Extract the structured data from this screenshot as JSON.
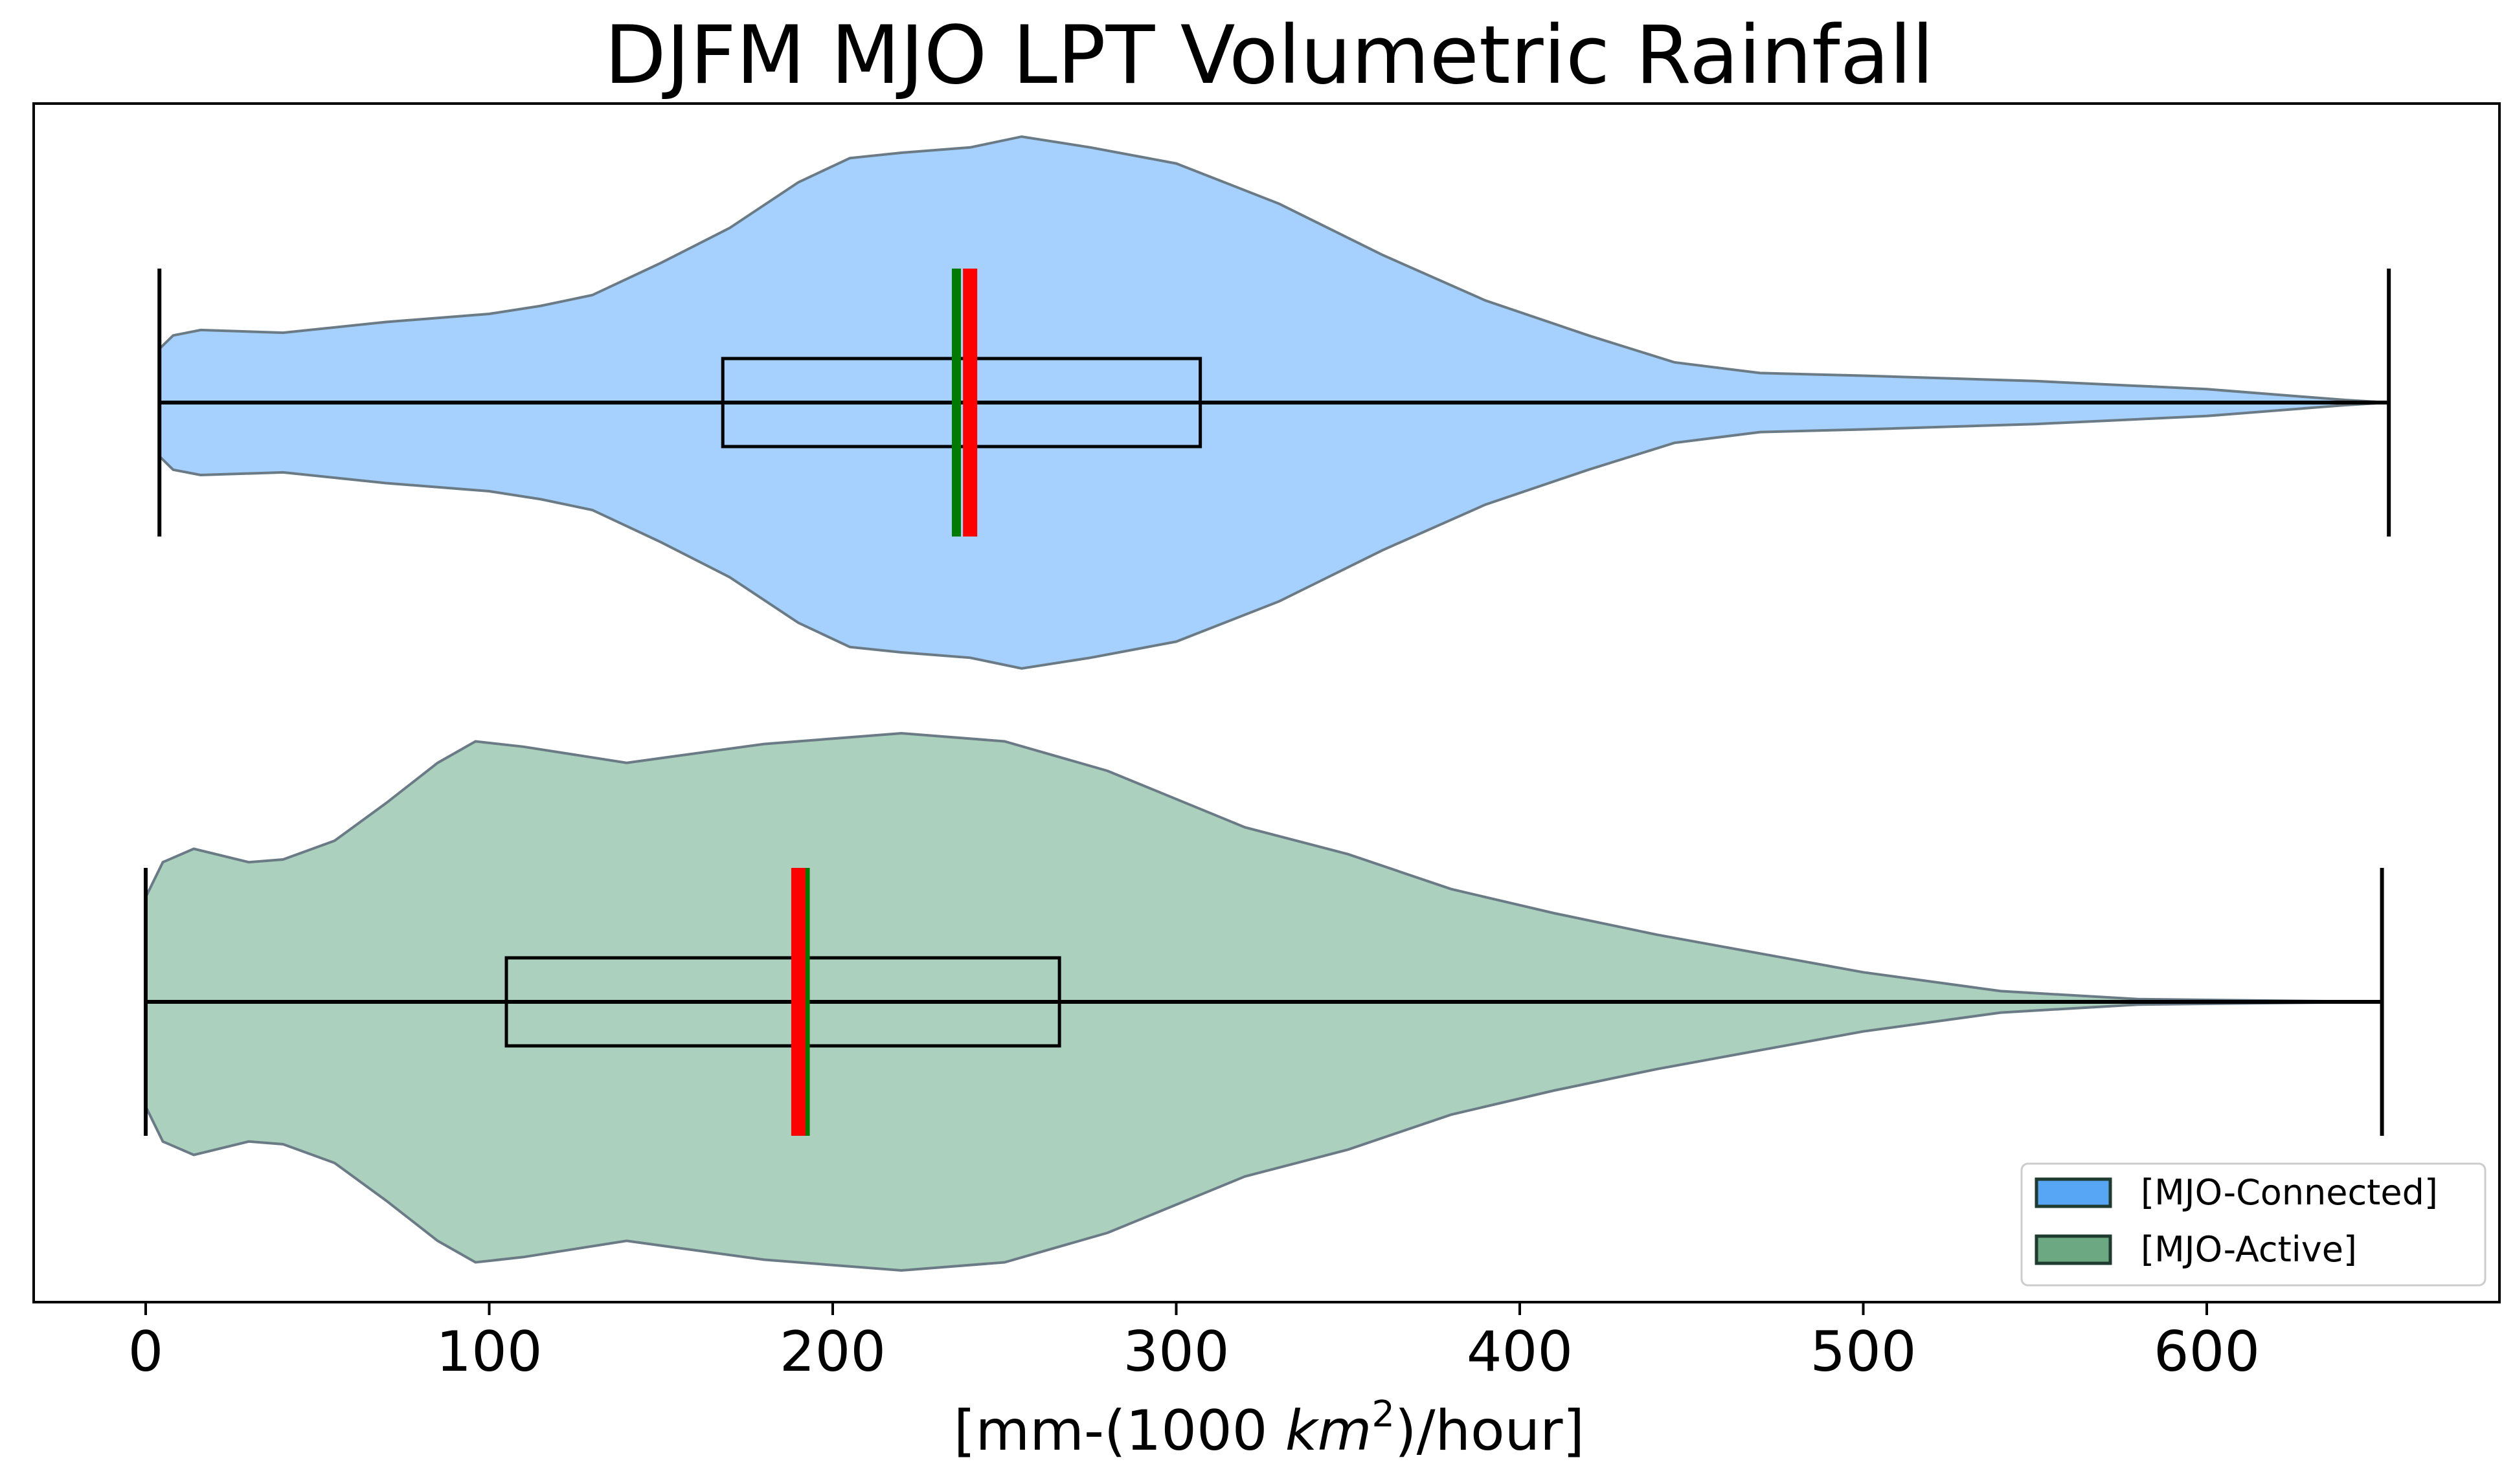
{
  "chart_data": {
    "type": "violin",
    "orientation": "horizontal",
    "title": "DJFM MJO LPT Volumetric Rainfall",
    "xlabel_prefix": "[mm-(1000 ",
    "xlabel_unit": "km",
    "xlabel_exp": "2",
    "xlabel_suffix": ")/hour]",
    "xlim": [
      -32,
      685
    ],
    "xticks": [
      0,
      100,
      200,
      300,
      400,
      500,
      600
    ],
    "xtick_labels": [
      "0",
      "100",
      "200",
      "300",
      "400",
      "500",
      "600"
    ],
    "grid": false,
    "legend_position": "lower-right",
    "series": [
      {
        "name": "[MJO-Connected]",
        "fill_color": "#a6d0fd",
        "legend_color": "#56a6f5",
        "min": 4,
        "q1": 168,
        "median": 240,
        "mean": 236,
        "q3": 307,
        "max": 653,
        "density": [
          [
            4,
            0.2
          ],
          [
            8,
            0.25
          ],
          [
            16,
            0.27
          ],
          [
            40,
            0.26
          ],
          [
            70,
            0.3
          ],
          [
            100,
            0.33
          ],
          [
            115,
            0.36
          ],
          [
            130,
            0.4
          ],
          [
            150,
            0.52
          ],
          [
            170,
            0.65
          ],
          [
            190,
            0.82
          ],
          [
            205,
            0.91
          ],
          [
            220,
            0.93
          ],
          [
            240,
            0.95
          ],
          [
            255,
            0.99
          ],
          [
            275,
            0.95
          ],
          [
            300,
            0.89
          ],
          [
            330,
            0.74
          ],
          [
            360,
            0.55
          ],
          [
            390,
            0.38
          ],
          [
            420,
            0.25
          ],
          [
            445,
            0.15
          ],
          [
            470,
            0.11
          ],
          [
            500,
            0.1
          ],
          [
            550,
            0.08
          ],
          [
            600,
            0.05
          ],
          [
            640,
            0.01
          ],
          [
            653,
            0.0
          ]
        ]
      },
      {
        "name": "[MJO-Active]",
        "fill_color": "#abd0bd",
        "legend_color": "#6ca882",
        "min": 0,
        "q1": 105,
        "median": 190,
        "mean": 192,
        "q3": 266,
        "max": 651,
        "density": [
          [
            0,
            0.39
          ],
          [
            5,
            0.52
          ],
          [
            14,
            0.57
          ],
          [
            30,
            0.52
          ],
          [
            40,
            0.53
          ],
          [
            55,
            0.6
          ],
          [
            70,
            0.74
          ],
          [
            85,
            0.89
          ],
          [
            96,
            0.97
          ],
          [
            110,
            0.95
          ],
          [
            140,
            0.89
          ],
          [
            180,
            0.96
          ],
          [
            220,
            1.0
          ],
          [
            250,
            0.97
          ],
          [
            280,
            0.86
          ],
          [
            320,
            0.65
          ],
          [
            350,
            0.55
          ],
          [
            380,
            0.42
          ],
          [
            410,
            0.33
          ],
          [
            440,
            0.25
          ],
          [
            470,
            0.18
          ],
          [
            500,
            0.11
          ],
          [
            540,
            0.04
          ],
          [
            580,
            0.01
          ],
          [
            651,
            0.0
          ]
        ]
      }
    ]
  }
}
